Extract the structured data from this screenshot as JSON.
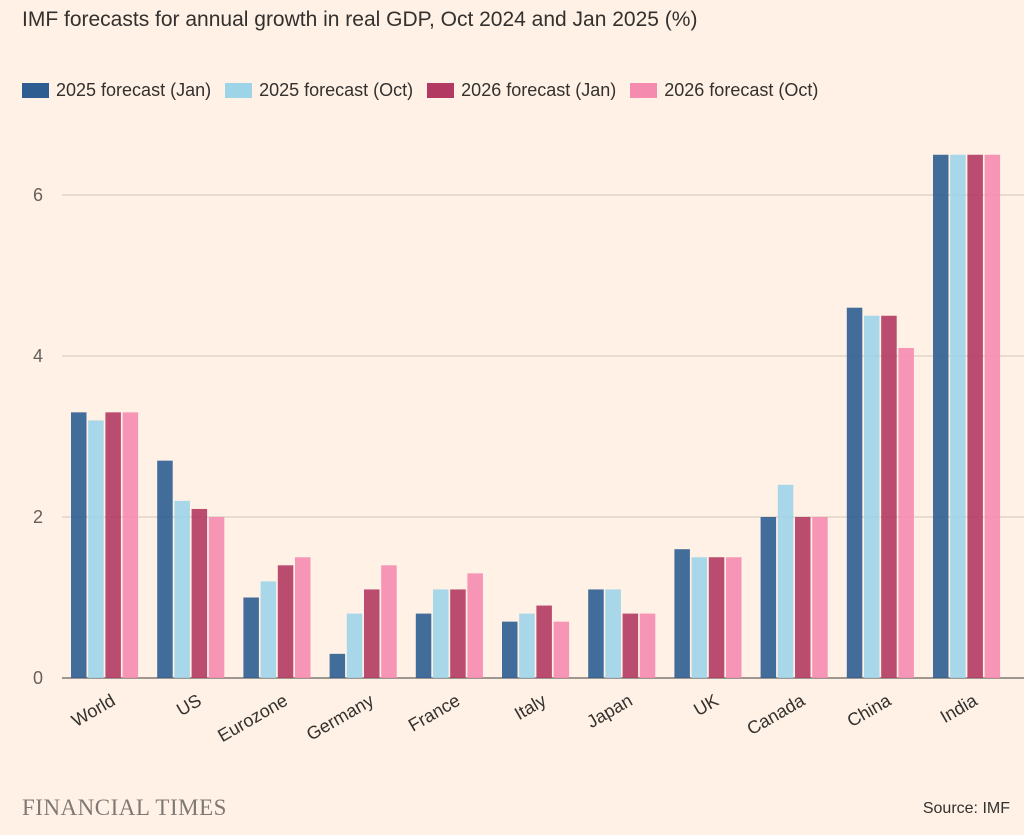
{
  "title": "IMF forecasts for annual growth in real GDP, Oct 2024 and Jan 2025 (%)",
  "brand": "FINANCIAL TIMES",
  "source": "Source: IMF",
  "chart_data": {
    "type": "bar",
    "title": "IMF forecasts for annual growth in real GDP, Oct 2024 and Jan 2025 (%)",
    "xlabel": "",
    "ylabel": "",
    "ylim": [
      0,
      6.6
    ],
    "yticks": [
      0,
      2,
      4,
      6
    ],
    "grid": true,
    "legend_position": "top-left",
    "categories": [
      "World",
      "US",
      "Eurozone",
      "Germany",
      "France",
      "Italy",
      "Japan",
      "UK",
      "Canada",
      "China",
      "India"
    ],
    "series": [
      {
        "name": "2025 forecast (Jan)",
        "color": "#2e5d91",
        "values": [
          3.3,
          2.7,
          1.0,
          0.3,
          0.8,
          0.7,
          1.1,
          1.6,
          2.0,
          4.6,
          6.5
        ]
      },
      {
        "name": "2025 forecast (Oct)",
        "color": "#9dd4e8",
        "values": [
          3.2,
          2.2,
          1.2,
          0.8,
          1.1,
          0.8,
          1.1,
          1.5,
          2.4,
          4.5,
          6.5
        ]
      },
      {
        "name": "2026 forecast (Jan)",
        "color": "#b23a62",
        "values": [
          3.3,
          2.1,
          1.4,
          1.1,
          1.1,
          0.9,
          0.8,
          1.5,
          2.0,
          4.5,
          6.5
        ]
      },
      {
        "name": "2026 forecast (Oct)",
        "color": "#f68bb0",
        "values": [
          3.3,
          2.0,
          1.5,
          1.4,
          1.3,
          0.7,
          0.8,
          1.5,
          2.0,
          4.1,
          6.5
        ]
      }
    ]
  }
}
